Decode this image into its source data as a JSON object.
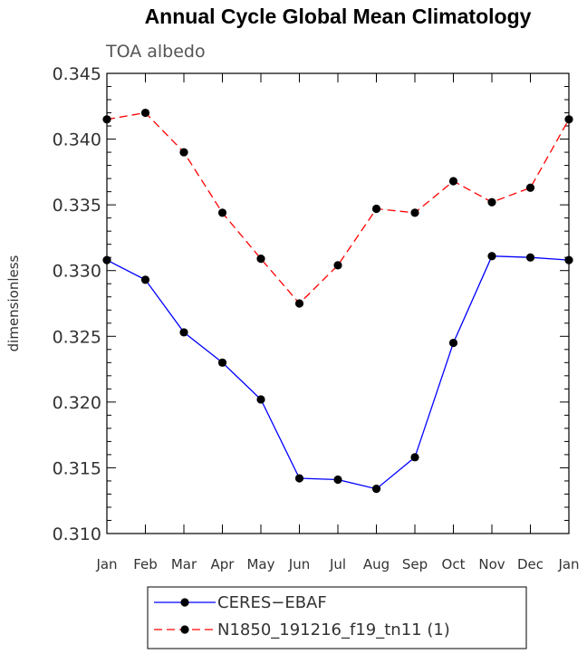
{
  "chart_data": {
    "type": "line",
    "title": "Annual Cycle Global Mean Climatology",
    "subtitle": "TOA albedo",
    "xlabel": "",
    "ylabel": "dimensionless",
    "categories": [
      "Jan",
      "Feb",
      "Mar",
      "Apr",
      "May",
      "Jun",
      "Jul",
      "Aug",
      "Sep",
      "Oct",
      "Nov",
      "Dec",
      "Jan"
    ],
    "ylim": [
      0.31,
      0.345
    ],
    "yticks": [
      "0.310",
      "0.315",
      "0.320",
      "0.325",
      "0.330",
      "0.335",
      "0.340",
      "0.345"
    ],
    "grid": false,
    "legend_position": "bottom",
    "series": [
      {
        "name": "CERES−EBAF",
        "color": "#0000ff",
        "dash": "solid",
        "values": [
          0.3308,
          0.3293,
          0.3253,
          0.323,
          0.3202,
          0.3142,
          0.3141,
          0.3134,
          0.3158,
          0.3245,
          0.3311,
          0.331,
          0.3308
        ]
      },
      {
        "name": "N1850_191216_f19_tn11 (1)",
        "color": "#ff0000",
        "dash": "dashed",
        "values": [
          0.3415,
          0.342,
          0.339,
          0.3344,
          0.3309,
          0.3275,
          0.3304,
          0.3347,
          0.3344,
          0.3368,
          0.3352,
          0.3363,
          0.3415
        ]
      }
    ]
  }
}
